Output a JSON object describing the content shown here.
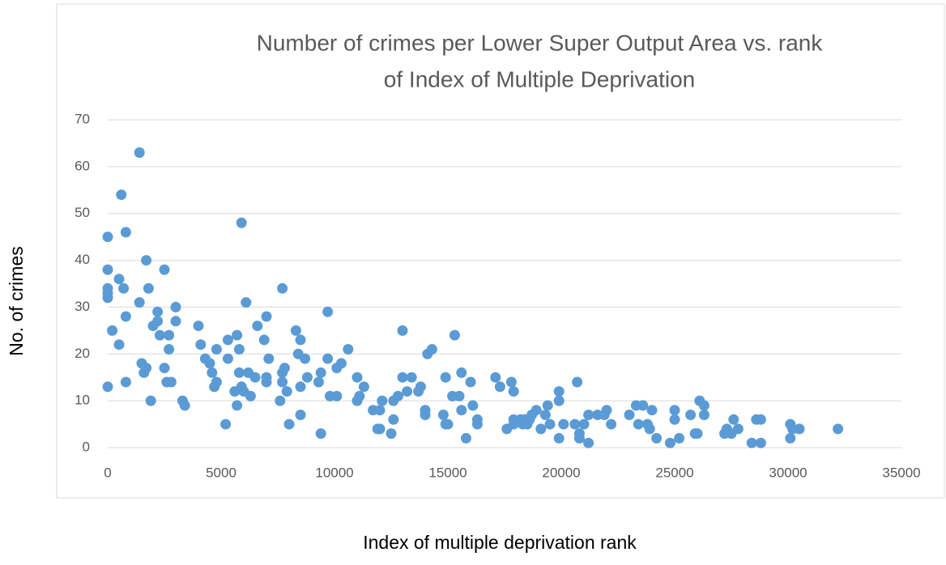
{
  "chart_data": {
    "type": "scatter",
    "title": [
      "Number of crimes per Lower Super Output Area vs.  rank",
      "of Index of Multiple Deprivation"
    ],
    "x_label": "Index of multiple deprivation rank",
    "y_label": "No. of crimes",
    "color": "#5b9bd5",
    "grid": true,
    "xlim": [
      0,
      35000
    ],
    "xticks": [
      0,
      5000,
      10000,
      15000,
      20000,
      25000,
      30000,
      35000
    ],
    "ylim": [
      0,
      70
    ],
    "yticks": [
      0,
      10,
      20,
      30,
      40,
      50,
      60,
      70
    ],
    "x": [
      0,
      0,
      0,
      0,
      0,
      0,
      200,
      500,
      600,
      500,
      700,
      800,
      800,
      800,
      1400,
      1400,
      1500,
      1600,
      1700,
      1700,
      1800,
      1900,
      2000,
      2200,
      2200,
      2300,
      2500,
      2500,
      2600,
      2700,
      2700,
      2800,
      3000,
      3000,
      3300,
      3400,
      4000,
      4100,
      4300,
      4500,
      4600,
      4700,
      4800,
      4800,
      5200,
      5300,
      5300,
      5600,
      5700,
      5700,
      5800,
      5800,
      5900,
      5900,
      6000,
      6100,
      6200,
      6300,
      6500,
      6600,
      6900,
      7000,
      7000,
      7000,
      7100,
      7600,
      7700,
      7700,
      7700,
      7800,
      7900,
      8000,
      8300,
      8400,
      8500,
      8500,
      8500,
      8700,
      8800,
      9300,
      9400,
      9400,
      9700,
      9700,
      9800,
      10100,
      10100,
      10300,
      10600,
      11000,
      11000,
      11100,
      11300,
      11700,
      11900,
      12000,
      12000,
      12100,
      12500,
      12600,
      12600,
      12800,
      13000,
      13000,
      13200,
      13400,
      13700,
      13800,
      14000,
      14000,
      14100,
      14300,
      14800,
      14900,
      14900,
      15000,
      15200,
      15300,
      15500,
      15600,
      15600,
      15800,
      16000,
      16100,
      16300,
      16300,
      17100,
      17300,
      17600,
      17800,
      17900,
      17900,
      17900,
      18200,
      18300,
      18400,
      18500,
      18600,
      18700,
      18900,
      19100,
      19300,
      19400,
      19500,
      19900,
      19900,
      19900,
      20100,
      20600,
      20700,
      20800,
      20800,
      21000,
      21200,
      21200,
      21600,
      21900,
      22000,
      22200,
      23000,
      23300,
      23400,
      23600,
      23800,
      23900,
      24000,
      24200,
      24800,
      25000,
      25000,
      25200,
      25700,
      25900,
      26000,
      26100,
      26300,
      26300,
      27200,
      27300,
      27500,
      27600,
      27800,
      28400,
      28600,
      28800,
      28800,
      30100,
      30100,
      30200,
      30500,
      32200
    ],
    "values": [
      45,
      38,
      34,
      33,
      32,
      13,
      25,
      36,
      54,
      22,
      34,
      46,
      28,
      14,
      63,
      31,
      18,
      16,
      40,
      17,
      34,
      10,
      26,
      27,
      29,
      24,
      38,
      17,
      14,
      21,
      24,
      14,
      30,
      27,
      10,
      9,
      26,
      22,
      19,
      18,
      16,
      13,
      21,
      14,
      5,
      23,
      19,
      12,
      9,
      24,
      21,
      16,
      48,
      13,
      12,
      31,
      16,
      11,
      15,
      26,
      23,
      28,
      15,
      14,
      19,
      10,
      34,
      16,
      14,
      17,
      12,
      5,
      25,
      20,
      13,
      7,
      23,
      19,
      15,
      14,
      3,
      16,
      19,
      29,
      11,
      17,
      11,
      18,
      21,
      15,
      10,
      11,
      13,
      8,
      4,
      8,
      4,
      10,
      3,
      6,
      10,
      11,
      25,
      15,
      12,
      15,
      12,
      13,
      8,
      7,
      20,
      21,
      7,
      5,
      15,
      5,
      11,
      24,
      11,
      16,
      8,
      2,
      14,
      9,
      6,
      5,
      15,
      13,
      4,
      14,
      12,
      6,
      5,
      6,
      5,
      6,
      5,
      6,
      7,
      8,
      4,
      7,
      9,
      5,
      2,
      12,
      10,
      5,
      5,
      14,
      3,
      2,
      5,
      1,
      7,
      7,
      7,
      8,
      5,
      7,
      9,
      5,
      9,
      5,
      4,
      8,
      2,
      1,
      6,
      8,
      2,
      7,
      3,
      3,
      10,
      7,
      9,
      3,
      4,
      3,
      6,
      4,
      1,
      6,
      6,
      1,
      2,
      5,
      4,
      4,
      4
    ]
  }
}
